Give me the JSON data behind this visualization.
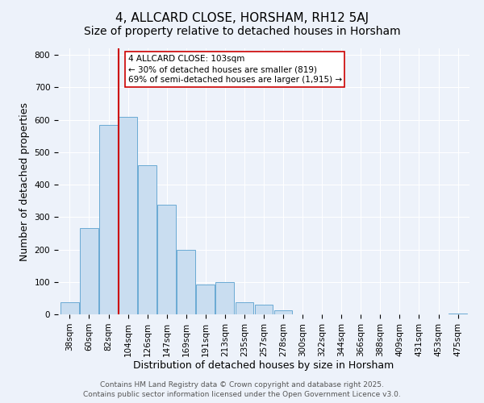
{
  "title": "4, ALLCARD CLOSE, HORSHAM, RH12 5AJ",
  "subtitle": "Size of property relative to detached houses in Horsham",
  "xlabel": "Distribution of detached houses by size in Horsham",
  "ylabel": "Number of detached properties",
  "bar_labels": [
    "38sqm",
    "60sqm",
    "82sqm",
    "104sqm",
    "126sqm",
    "147sqm",
    "169sqm",
    "191sqm",
    "213sqm",
    "235sqm",
    "257sqm",
    "278sqm",
    "300sqm",
    "322sqm",
    "344sqm",
    "366sqm",
    "388sqm",
    "409sqm",
    "431sqm",
    "453sqm",
    "475sqm"
  ],
  "bar_values": [
    37,
    267,
    585,
    610,
    460,
    338,
    200,
    93,
    100,
    37,
    30,
    12,
    0,
    0,
    0,
    0,
    0,
    0,
    0,
    0,
    3
  ],
  "bar_color": "#c9ddf0",
  "bar_edge_color": "#6aaad4",
  "vline_color": "#cc0000",
  "annotation_text": "4 ALLCARD CLOSE: 103sqm\n← 30% of detached houses are smaller (819)\n69% of semi-detached houses are larger (1,915) →",
  "annotation_box_facecolor": "#ffffff",
  "annotation_box_edgecolor": "#cc0000",
  "ylim": [
    0,
    820
  ],
  "yticks": [
    0,
    100,
    200,
    300,
    400,
    500,
    600,
    700,
    800
  ],
  "footer1": "Contains HM Land Registry data © Crown copyright and database right 2025.",
  "footer2": "Contains public sector information licensed under the Open Government Licence v3.0.",
  "background_color": "#edf2fa",
  "grid_color": "#ffffff",
  "title_fontsize": 11,
  "tick_fontsize": 7.5,
  "axis_label_fontsize": 9,
  "footer_fontsize": 6.5
}
